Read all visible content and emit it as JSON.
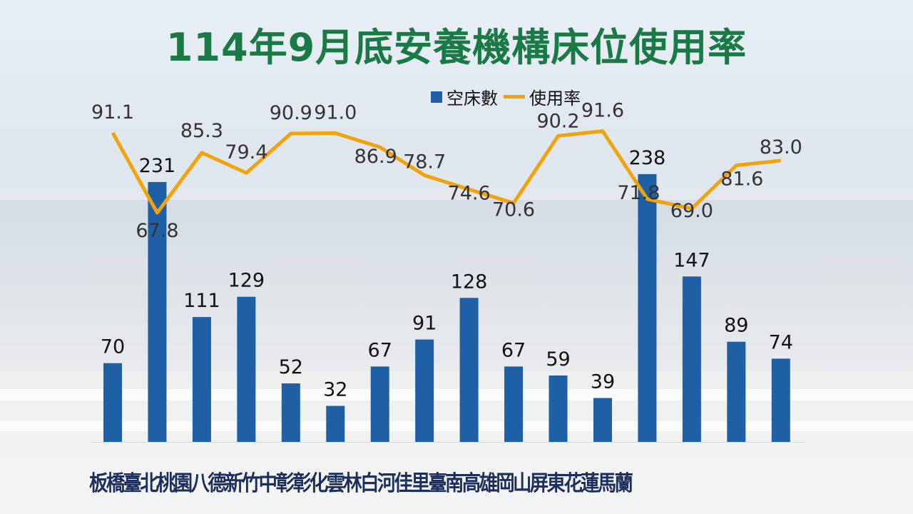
{
  "title": "114年9月底安養機構床位使用率",
  "chart_data": {
    "type": "bar+line",
    "title": "114年9月底安養機構床位使用率",
    "categories": [
      "板橋",
      "臺北",
      "桃園",
      "八德",
      "新竹",
      "中彰",
      "彰化",
      "雲林",
      "白河",
      "佳里",
      "臺南",
      "高雄",
      "岡山",
      "屏東",
      "花蓮",
      "馬蘭"
    ],
    "series": [
      {
        "name": "空床數",
        "type": "bar",
        "color": "#1f5fa6",
        "values": [
          70,
          231,
          111,
          129,
          52,
          32,
          67,
          91,
          128,
          67,
          59,
          39,
          238,
          147,
          89,
          74
        ]
      },
      {
        "name": "使用率",
        "type": "line",
        "color": "#f0a30a",
        "values": [
          91.1,
          67.8,
          85.3,
          79.4,
          90.9,
          91.0,
          86.9,
          78.7,
          74.6,
          70.6,
          90.2,
          91.6,
          71.8,
          69.0,
          81.6,
          83.0
        ]
      }
    ],
    "legend": "top-center",
    "grid": false
  }
}
